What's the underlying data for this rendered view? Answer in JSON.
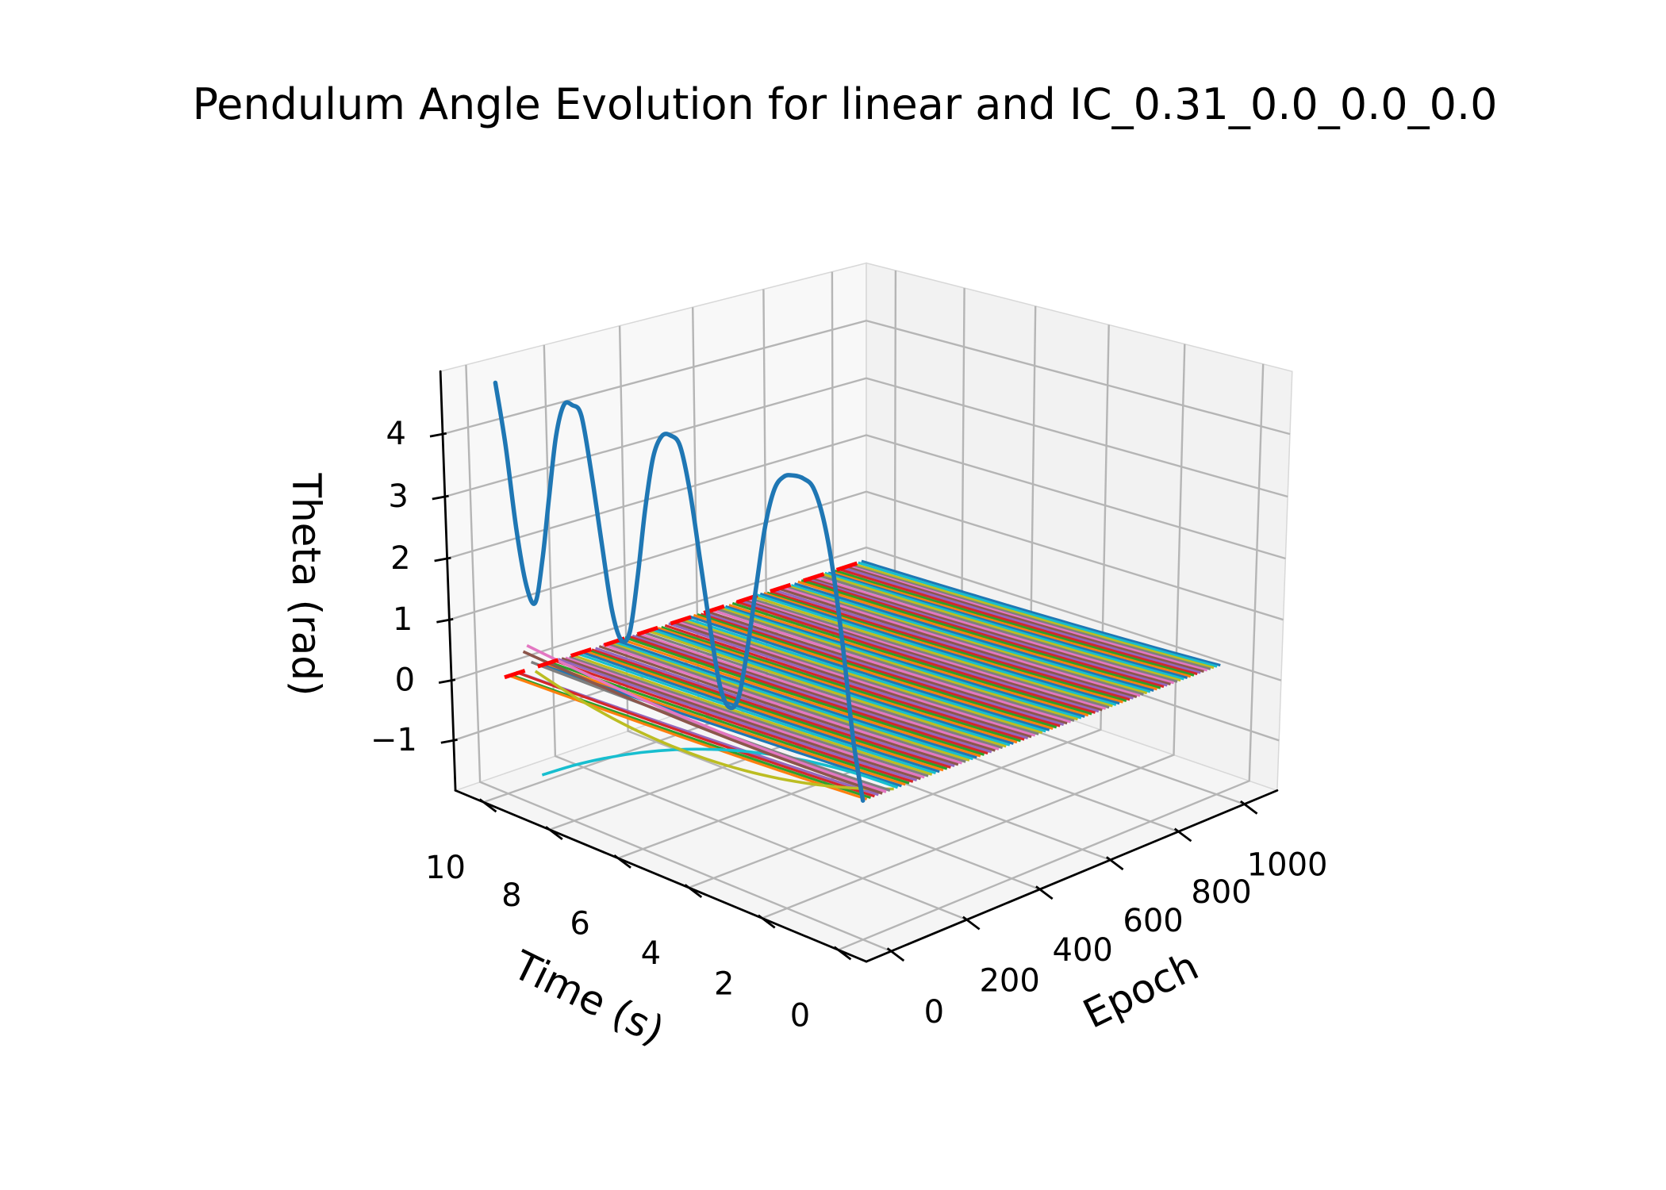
{
  "title": "Pendulum Angle Evolution for linear and IC_0.31_0.0_0.0_0.0",
  "axes": {
    "time": {
      "label": "Time (s)",
      "ticks": [
        0,
        2,
        4,
        6,
        8,
        10
      ],
      "range": [
        0,
        10
      ]
    },
    "epoch": {
      "label": "Epoch",
      "ticks": [
        0,
        200,
        400,
        600,
        800,
        1000
      ],
      "range": [
        0,
        1000
      ]
    },
    "theta": {
      "label": "Theta (rad)",
      "ticks": [
        -1,
        0,
        1,
        2,
        3,
        4
      ]
    }
  },
  "chart_data": {
    "type": "line",
    "projection": "3d",
    "title": "Pendulum Angle Evolution for linear and IC_0.31_0.0_0.0_0.0",
    "xlabel": "Time (s)",
    "ylabel": "Epoch",
    "zlabel": "Theta (rad)",
    "model": "linear",
    "initial_condition_tag": "IC_0.31_0.0_0.0_0.0",
    "theta0": 0.31,
    "grid": true,
    "epoch0_trajectory": {
      "epoch": 0,
      "color": "#1f77b4",
      "linewidth": 5.5,
      "points": [
        [
          0,
          0.31
        ],
        [
          0.25,
          1.2
        ],
        [
          0.5,
          2.5
        ],
        [
          0.75,
          3.6
        ],
        [
          1,
          4.35
        ],
        [
          1.25,
          4.75
        ],
        [
          1.5,
          4.84
        ],
        [
          1.75,
          4.84
        ],
        [
          2,
          4.78
        ],
        [
          2.25,
          4.55
        ],
        [
          2.5,
          3.95
        ],
        [
          2.75,
          3.0
        ],
        [
          3,
          2.0
        ],
        [
          3.25,
          1.2
        ],
        [
          3.5,
          0.98
        ],
        [
          3.75,
          1.25
        ],
        [
          4,
          2.1
        ],
        [
          4.25,
          3.1
        ],
        [
          4.5,
          4.1
        ],
        [
          4.75,
          4.75
        ],
        [
          5,
          4.87
        ],
        [
          5.25,
          4.82
        ],
        [
          5.5,
          4.45
        ],
        [
          5.75,
          3.6
        ],
        [
          6,
          2.5
        ],
        [
          6.25,
          1.6
        ],
        [
          6.5,
          1.42
        ],
        [
          6.75,
          1.85
        ],
        [
          7,
          2.85
        ],
        [
          7.25,
          3.9
        ],
        [
          7.5,
          4.75
        ],
        [
          7.75,
          4.87
        ],
        [
          8,
          4.83
        ],
        [
          8.25,
          4.3
        ],
        [
          8.5,
          3.3
        ],
        [
          8.75,
          2.25
        ],
        [
          9,
          1.52
        ],
        [
          9.25,
          1.75
        ],
        [
          9.5,
          2.6
        ],
        [
          9.75,
          3.9
        ],
        [
          10,
          4.85
        ]
      ]
    },
    "reference_line": {
      "color": "#ff0000",
      "style": "dashed",
      "linewidth": 5,
      "at_time": 10,
      "theta": 0.1,
      "epoch_span": [
        0,
        1000
      ]
    },
    "converged_trajectory": {
      "points": [
        [
          0,
          0.31
        ],
        [
          0.5,
          0.293
        ],
        [
          1,
          0.277
        ],
        [
          1.5,
          0.262
        ],
        [
          2,
          0.249
        ],
        [
          2.5,
          0.235
        ],
        [
          3,
          0.223
        ],
        [
          3.5,
          0.211
        ],
        [
          4,
          0.2
        ],
        [
          4.5,
          0.189
        ],
        [
          5,
          0.179
        ],
        [
          5.5,
          0.169
        ],
        [
          6,
          0.16
        ],
        [
          6.5,
          0.152
        ],
        [
          7,
          0.143
        ],
        [
          7.5,
          0.136
        ],
        [
          8,
          0.129
        ],
        [
          8.5,
          0.122
        ],
        [
          9,
          0.115
        ],
        [
          9.5,
          0.109
        ],
        [
          10,
          0.103
        ]
      ]
    },
    "outlier_trajectories": [
      {
        "epoch": 90,
        "color": "#17becf",
        "points": [
          [
            0,
            0.31
          ],
          [
            1,
            0.29
          ],
          [
            2,
            0.228
          ],
          [
            3,
            0.126
          ],
          [
            4,
            -0.016
          ],
          [
            5,
            -0.2
          ],
          [
            6,
            -0.424
          ],
          [
            7,
            -0.69
          ],
          [
            8,
            -0.996
          ],
          [
            9,
            -1.342
          ],
          [
            10,
            -1.73
          ]
        ]
      },
      {
        "epoch": 80,
        "color": "#bcbd22",
        "points": [
          [
            0,
            0.31
          ],
          [
            1,
            0.096
          ],
          [
            2,
            -0.074
          ],
          [
            3,
            -0.203
          ],
          [
            4,
            -0.291
          ],
          [
            5,
            -0.338
          ],
          [
            6,
            -0.344
          ],
          [
            7,
            -0.31
          ],
          [
            8,
            -0.234
          ],
          [
            9,
            -0.119
          ],
          [
            10,
            0.036
          ]
        ]
      },
      {
        "epoch": 70,
        "color": "#7f7f7f",
        "points": [
          [
            0,
            0.31
          ],
          [
            1,
            0.28
          ],
          [
            2,
            0.258
          ],
          [
            3,
            0.24
          ],
          [
            4,
            0.227
          ],
          [
            5,
            0.216
          ],
          [
            6,
            0.209
          ],
          [
            7,
            0.205
          ],
          [
            8,
            0.204
          ],
          [
            9,
            0.205
          ],
          [
            10,
            0.208
          ]
        ]
      },
      {
        "epoch": 60,
        "color": "#e377c2",
        "points": [
          [
            0,
            0.31
          ],
          [
            1,
            0.281
          ],
          [
            2,
            0.265
          ],
          [
            3,
            0.259
          ],
          [
            4,
            0.264
          ],
          [
            5,
            0.279
          ],
          [
            6,
            0.304
          ],
          [
            7,
            0.339
          ],
          [
            8,
            0.385
          ],
          [
            9,
            0.439
          ],
          [
            10,
            0.503
          ]
        ]
      },
      {
        "epoch": 50,
        "color": "#8c564b",
        "points": [
          [
            0,
            0.31
          ],
          [
            1,
            0.282
          ],
          [
            2,
            0.267
          ],
          [
            3,
            0.26
          ],
          [
            4,
            0.262
          ],
          [
            5,
            0.271
          ],
          [
            6,
            0.288
          ],
          [
            7,
            0.311
          ],
          [
            8,
            0.343
          ],
          [
            9,
            0.38
          ],
          [
            10,
            0.423
          ]
        ]
      }
    ],
    "band": {
      "description": "per-epoch predicted trajectories converging to the converged_trajectory",
      "early_epochs": [
        10,
        20,
        30,
        40
      ],
      "epoch_start": 100,
      "epoch_end": 1000,
      "epoch_step": 10,
      "linewidth": 3.2,
      "palette_cycle": [
        "#1f77b4",
        "#ff7f0e",
        "#2ca02c",
        "#d62728",
        "#9467bd",
        "#8c564b",
        "#e377c2",
        "#7f7f7f",
        "#bcbd22",
        "#17becf"
      ]
    },
    "style": {
      "pane_left": "#f8f8f8",
      "pane_right": "#f2f2f2",
      "pane_floor": "#f5f5f5",
      "pane_edge": "#d8d8d8",
      "grid_color": "#b5b5b5",
      "axis_color": "#000000",
      "tick_fontsize": 40,
      "label_fontsize": 50,
      "title_fontsize": 54
    }
  }
}
